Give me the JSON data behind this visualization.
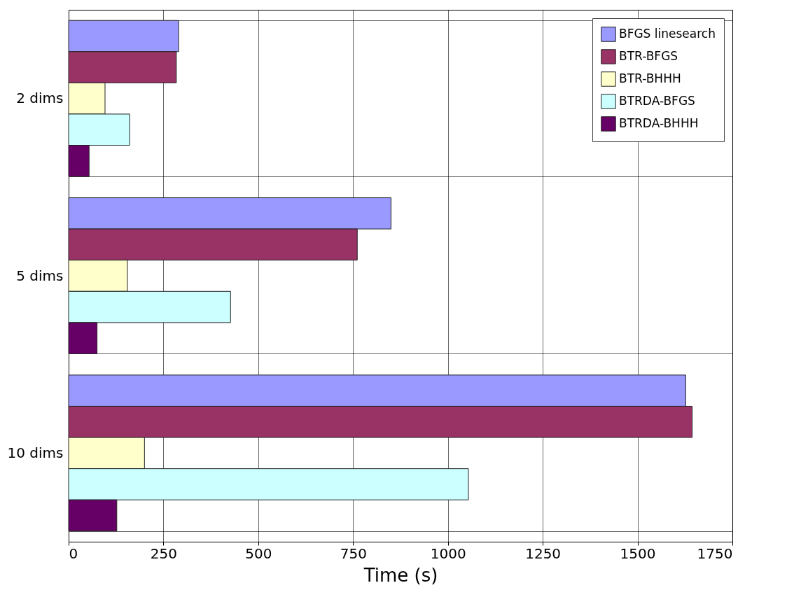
{
  "chart_data": {
    "type": "bar",
    "orientation": "horizontal",
    "xlabel": "Time (s)",
    "categories": [
      "2 dims",
      "5 dims",
      "10 dims"
    ],
    "series": [
      {
        "name": "BFGS linesearch",
        "color": "#9999ff",
        "values": [
          290,
          850,
          1627
        ]
      },
      {
        "name": "BTR-BFGS",
        "color": "#993366",
        "values": [
          284,
          761,
          1644
        ]
      },
      {
        "name": "BTR-BHHH",
        "color": "#ffffcc",
        "values": [
          96,
          155,
          200
        ]
      },
      {
        "name": "BTRDA-BFGS",
        "color": "#ccffff",
        "values": [
          161,
          427,
          1054
        ]
      },
      {
        "name": "BTRDA-BHHH",
        "color": "#660066",
        "values": [
          54,
          75,
          127
        ]
      }
    ],
    "xlim": [
      0,
      1750
    ],
    "xticks": [
      0,
      250,
      500,
      750,
      1000,
      1250,
      1500,
      1750
    ],
    "grid": true,
    "legend": "top right"
  }
}
